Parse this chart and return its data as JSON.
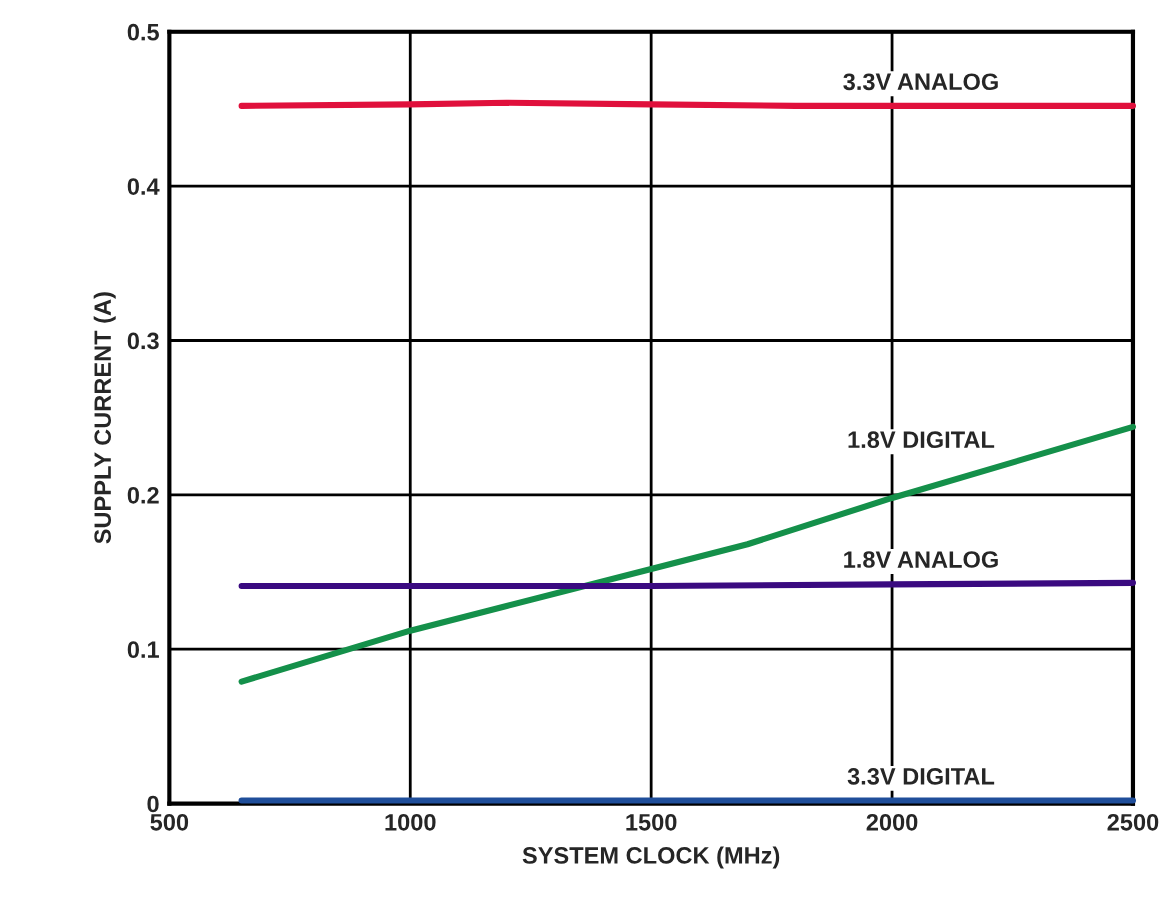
{
  "chart_data": {
    "type": "line",
    "xlabel": "SYSTEM CLOCK (MHz)",
    "ylabel": "SUPPLY CURRENT (A)",
    "xlim": [
      500,
      2500
    ],
    "xticks": [
      500,
      1000,
      1500,
      2000,
      2500
    ],
    "ylim": [
      0,
      0.5
    ],
    "yticks": [
      0,
      0.1,
      0.2,
      0.3,
      0.4,
      0.5
    ],
    "grid": true,
    "legend": false,
    "marker": "none",
    "line_style": "solid",
    "series": [
      {
        "name": "3.3V ANALOG",
        "color": "#e0103c",
        "x": [
          650,
          1000,
          1200,
          1500,
          1800,
          2000,
          2500
        ],
        "values": [
          0.452,
          0.453,
          0.454,
          0.453,
          0.452,
          0.452,
          0.452
        ]
      },
      {
        "name": "1.8V DIGITAL",
        "color": "#14904a",
        "x": [
          650,
          1000,
          1200,
          1500,
          1700,
          2000,
          2500
        ],
        "values": [
          0.079,
          0.112,
          0.128,
          0.152,
          0.168,
          0.198,
          0.244
        ]
      },
      {
        "name": "1.8V ANALOG",
        "color": "#3a0a80",
        "x": [
          650,
          1000,
          1500,
          2000,
          2500
        ],
        "values": [
          0.141,
          0.141,
          0.141,
          0.142,
          0.143
        ]
      },
      {
        "name": "3.3V DIGITAL",
        "color": "#1f4e9a",
        "x": [
          650,
          1500,
          2500
        ],
        "values": [
          0.002,
          0.002,
          0.002
        ]
      }
    ]
  }
}
